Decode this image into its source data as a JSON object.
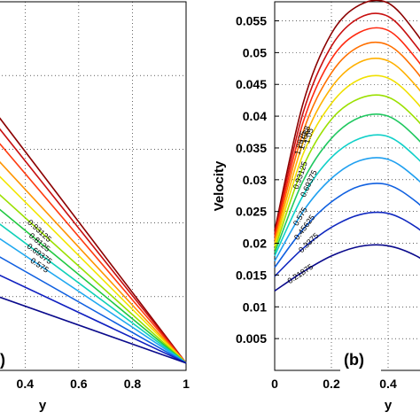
{
  "chart_data": [
    {
      "panel": "a",
      "type": "line",
      "title": "",
      "xlabel": "y",
      "ylabel": "",
      "xlim": [
        0.3,
        1.0
      ],
      "ylim": [
        0,
        1
      ],
      "x_ticks": [
        "0.4",
        "0.6",
        "0.8",
        "1"
      ],
      "panel_label": ")",
      "grid": true,
      "series": [
        {
          "values": [
            [
              0.3,
              0.69
            ],
            [
              1.0,
              0.02
            ]
          ],
          "color": "#8b0000",
          "level": ""
        },
        {
          "values": [
            [
              0.3,
              0.66
            ],
            [
              1.0,
              0.02
            ]
          ],
          "color": "#c81010",
          "level": ""
        },
        {
          "values": [
            [
              0.3,
              0.62
            ],
            [
              1.0,
              0.02
            ]
          ],
          "color": "#ff3b10",
          "level": ""
        },
        {
          "values": [
            [
              0.3,
              0.57
            ],
            [
              1.0,
              0.02
            ]
          ],
          "color": "#ff9500",
          "level": ""
        },
        {
          "values": [
            [
              0.3,
              0.53
            ],
            [
              1.0,
              0.02
            ]
          ],
          "color": "#f2e600",
          "level": ""
        },
        {
          "values": [
            [
              0.3,
              0.48
            ],
            [
              1.0,
              0.02
            ]
          ],
          "color": "#9be000",
          "level": "0.93125"
        },
        {
          "values": [
            [
              0.3,
              0.44
            ],
            [
              1.0,
              0.02
            ]
          ],
          "color": "#20c840",
          "level": "0.8125"
        },
        {
          "values": [
            [
              0.3,
              0.4
            ],
            [
              1.0,
              0.02
            ]
          ],
          "color": "#10d0b8",
          "level": "0.69375"
        },
        {
          "values": [
            [
              0.3,
              0.36
            ],
            [
              1.0,
              0.02
            ]
          ],
          "color": "#20a8f0",
          "level": "0.575"
        },
        {
          "values": [
            [
              0.3,
              0.31
            ],
            [
              1.0,
              0.02
            ]
          ],
          "color": "#1060e0",
          "level": ""
        },
        {
          "values": [
            [
              0.3,
              0.26
            ],
            [
              1.0,
              0.02
            ]
          ],
          "color": "#1020c0",
          "level": ""
        },
        {
          "values": [
            [
              0.3,
              0.2
            ],
            [
              1.0,
              0.02
            ]
          ],
          "color": "#0a0a8c",
          "level": ""
        }
      ],
      "contour_labels": [
        "0.93125",
        "0.8125",
        "0.69375",
        "0.575"
      ]
    },
    {
      "panel": "b",
      "type": "line",
      "title": "",
      "xlabel": "y",
      "ylabel": "Velocity",
      "xlim": [
        0,
        0.6
      ],
      "ylim": [
        0,
        0.058
      ],
      "x_ticks": [
        "0",
        "0.2",
        "0.4"
      ],
      "y_ticks": [
        "0.005",
        "0.01",
        "0.015",
        "0.02",
        "0.025",
        "0.03",
        "0.035",
        "0.04",
        "0.045",
        "0.05",
        "0.055"
      ],
      "y_tick_values": [
        0.005,
        0.01,
        0.015,
        0.02,
        0.025,
        0.03,
        0.035,
        0.04,
        0.045,
        0.05,
        0.055
      ],
      "panel_label": "(b)",
      "grid": true,
      "series": [
        {
          "level": "",
          "color": "#8b0000",
          "values": [
            [
              0,
              0.022
            ],
            [
              0.1,
              0.042
            ],
            [
              0.2,
              0.053
            ],
            [
              0.3,
              0.0575
            ],
            [
              0.4,
              0.0578
            ],
            [
              0.5,
              0.053
            ],
            [
              0.6,
              0.046
            ]
          ]
        },
        {
          "level": "",
          "color": "#c81010",
          "values": [
            [
              0,
              0.0215
            ],
            [
              0.1,
              0.0405
            ],
            [
              0.2,
              0.051
            ],
            [
              0.3,
              0.0555
            ],
            [
              0.4,
              0.0557
            ],
            [
              0.5,
              0.051
            ],
            [
              0.6,
              0.0445
            ]
          ]
        },
        {
          "level": "",
          "color": "#ff2a10",
          "values": [
            [
              0,
              0.021
            ],
            [
              0.1,
              0.039
            ],
            [
              0.2,
              0.049
            ],
            [
              0.3,
              0.0532
            ],
            [
              0.4,
              0.0535
            ],
            [
              0.5,
              0.049
            ],
            [
              0.6,
              0.0425
            ]
          ]
        },
        {
          "level": "1.2875",
          "color": "#ff7000",
          "values": [
            [
              0,
              0.0205
            ],
            [
              0.1,
              0.0375
            ],
            [
              0.2,
              0.0468
            ],
            [
              0.3,
              0.051
            ],
            [
              0.4,
              0.0512
            ],
            [
              0.5,
              0.047
            ],
            [
              0.6,
              0.0405
            ]
          ]
        },
        {
          "level": "1.1688",
          "color": "#ffb000",
          "values": [
            [
              0,
              0.02
            ],
            [
              0.1,
              0.0358
            ],
            [
              0.2,
              0.0445
            ],
            [
              0.3,
              0.0485
            ],
            [
              0.4,
              0.0487
            ],
            [
              0.5,
              0.0447
            ],
            [
              0.6,
              0.0385
            ]
          ]
        },
        {
          "level": "1.05",
          "color": "#f0e000",
          "values": [
            [
              0,
              0.0195
            ],
            [
              0.1,
              0.034
            ],
            [
              0.2,
              0.042
            ],
            [
              0.3,
              0.0458
            ],
            [
              0.4,
              0.046
            ],
            [
              0.5,
              0.0422
            ],
            [
              0.6,
              0.0362
            ]
          ]
        },
        {
          "level": "0.93125",
          "color": "#9be000",
          "values": [
            [
              0,
              0.019
            ],
            [
              0.1,
              0.032
            ],
            [
              0.2,
              0.0395
            ],
            [
              0.3,
              0.0428
            ],
            [
              0.4,
              0.043
            ],
            [
              0.5,
              0.0395
            ],
            [
              0.6,
              0.0338
            ]
          ]
        },
        {
          "level": "",
          "color": "#20c860",
          "values": [
            [
              0,
              0.0185
            ],
            [
              0.1,
              0.0298
            ],
            [
              0.2,
              0.0365
            ],
            [
              0.3,
              0.0398
            ],
            [
              0.4,
              0.04
            ],
            [
              0.5,
              0.0366
            ],
            [
              0.6,
              0.0312
            ]
          ]
        },
        {
          "level": "0.69375",
          "color": "#10d0c8",
          "values": [
            [
              0,
              0.018
            ],
            [
              0.1,
              0.0275
            ],
            [
              0.2,
              0.0335
            ],
            [
              0.3,
              0.0365
            ],
            [
              0.4,
              0.0368
            ],
            [
              0.5,
              0.0335
            ],
            [
              0.6,
              0.0285
            ]
          ]
        },
        {
          "level": "0.575",
          "color": "#20a0f0",
          "values": [
            [
              0,
              0.0172
            ],
            [
              0.1,
              0.025
            ],
            [
              0.2,
              0.0302
            ],
            [
              0.3,
              0.033
            ],
            [
              0.4,
              0.0332
            ],
            [
              0.5,
              0.0302
            ],
            [
              0.6,
              0.0255
            ]
          ]
        },
        {
          "level": "0.45625",
          "color": "#1060e0",
          "values": [
            [
              0,
              0.0162
            ],
            [
              0.1,
              0.0222
            ],
            [
              0.2,
              0.0265
            ],
            [
              0.3,
              0.029
            ],
            [
              0.4,
              0.0292
            ],
            [
              0.5,
              0.0265
            ],
            [
              0.6,
              0.0222
            ]
          ]
        },
        {
          "level": "0.3375",
          "color": "#1028c0",
          "values": [
            [
              0,
              0.0148
            ],
            [
              0.1,
              0.0192
            ],
            [
              0.2,
              0.0225
            ],
            [
              0.3,
              0.0245
            ],
            [
              0.4,
              0.0247
            ],
            [
              0.5,
              0.0225
            ],
            [
              0.6,
              0.0188
            ]
          ]
        },
        {
          "level": "0.21875",
          "color": "#0a0a8c",
          "values": [
            [
              0,
              0.0125
            ],
            [
              0.1,
              0.0155
            ],
            [
              0.2,
              0.018
            ],
            [
              0.3,
              0.0195
            ],
            [
              0.4,
              0.0196
            ],
            [
              0.5,
              0.018
            ],
            [
              0.6,
              0.015
            ]
          ]
        }
      ],
      "contour_labels": [
        "1.2875",
        "1.1688",
        "1.05",
        "0.93125",
        "0.69375",
        "0.575",
        "0.45625",
        "0.3375",
        "0.21875"
      ]
    }
  ]
}
